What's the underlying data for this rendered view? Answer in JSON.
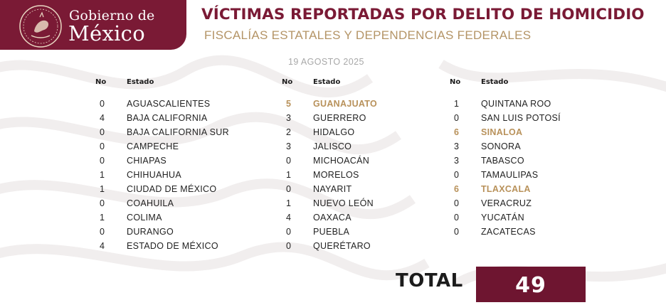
{
  "header": {
    "gov_line1": "Gobierno de",
    "gov_line2": "México",
    "title": "VÍCTIMAS REPORTADAS POR DELITO DE HOMICIDIO",
    "subtitle": "FISCALÍAS ESTATALES Y DEPENDENCIAS FEDERALES",
    "date": "19 AGOSTO 2025"
  },
  "columns_header": {
    "no": "No",
    "estado": "Estado"
  },
  "table": {
    "col1": [
      {
        "no": "0",
        "estado": "AGUASCALIENTES",
        "highlight": false
      },
      {
        "no": "4",
        "estado": "BAJA CALIFORNIA",
        "highlight": false
      },
      {
        "no": "0",
        "estado": "BAJA CALIFORNIA SUR",
        "highlight": false
      },
      {
        "no": "0",
        "estado": "CAMPECHE",
        "highlight": false
      },
      {
        "no": "0",
        "estado": "CHIAPAS",
        "highlight": false
      },
      {
        "no": "1",
        "estado": "CHIHUAHUA",
        "highlight": false
      },
      {
        "no": "1",
        "estado": "CIUDAD DE MÉXICO",
        "highlight": false
      },
      {
        "no": "0",
        "estado": "COAHUILA",
        "highlight": false
      },
      {
        "no": "1",
        "estado": "COLIMA",
        "highlight": false
      },
      {
        "no": "0",
        "estado": "DURANGO",
        "highlight": false
      },
      {
        "no": "4",
        "estado": "ESTADO DE MÉXICO",
        "highlight": false
      }
    ],
    "col2": [
      {
        "no": "5",
        "estado": "GUANAJUATO",
        "highlight": true
      },
      {
        "no": "3",
        "estado": "GUERRERO",
        "highlight": false
      },
      {
        "no": "2",
        "estado": "HIDALGO",
        "highlight": false
      },
      {
        "no": "3",
        "estado": "JALISCO",
        "highlight": false
      },
      {
        "no": "0",
        "estado": "MICHOACÁN",
        "highlight": false
      },
      {
        "no": "1",
        "estado": "MORELOS",
        "highlight": false
      },
      {
        "no": "0",
        "estado": "NAYARIT",
        "highlight": false
      },
      {
        "no": "1",
        "estado": "NUEVO LEÓN",
        "highlight": false
      },
      {
        "no": "4",
        "estado": "OAXACA",
        "highlight": false
      },
      {
        "no": "0",
        "estado": "PUEBLA",
        "highlight": false
      },
      {
        "no": "0",
        "estado": "QUERÉTARO",
        "highlight": false
      }
    ],
    "col3": [
      {
        "no": "1",
        "estado": "QUINTANA ROO",
        "highlight": false
      },
      {
        "no": "0",
        "estado": "SAN LUIS POTOSÍ",
        "highlight": false
      },
      {
        "no": "6",
        "estado": "SINALOA",
        "highlight": true
      },
      {
        "no": "3",
        "estado": "SONORA",
        "highlight": false
      },
      {
        "no": "3",
        "estado": "TABASCO",
        "highlight": false
      },
      {
        "no": "0",
        "estado": "TAMAULIPAS",
        "highlight": false
      },
      {
        "no": "6",
        "estado": "TLAXCALA",
        "highlight": true
      },
      {
        "no": "0",
        "estado": "VERACRUZ",
        "highlight": false
      },
      {
        "no": "0",
        "estado": "YUCATÁN",
        "highlight": false
      },
      {
        "no": "0",
        "estado": "ZACATECAS",
        "highlight": false
      }
    ]
  },
  "total": {
    "label": "TOTAL",
    "value": "49"
  },
  "colors": {
    "brand": "#7a1a35",
    "gold": "#b49466",
    "highlight": "#b8915a",
    "total_box": "#6e1530"
  }
}
